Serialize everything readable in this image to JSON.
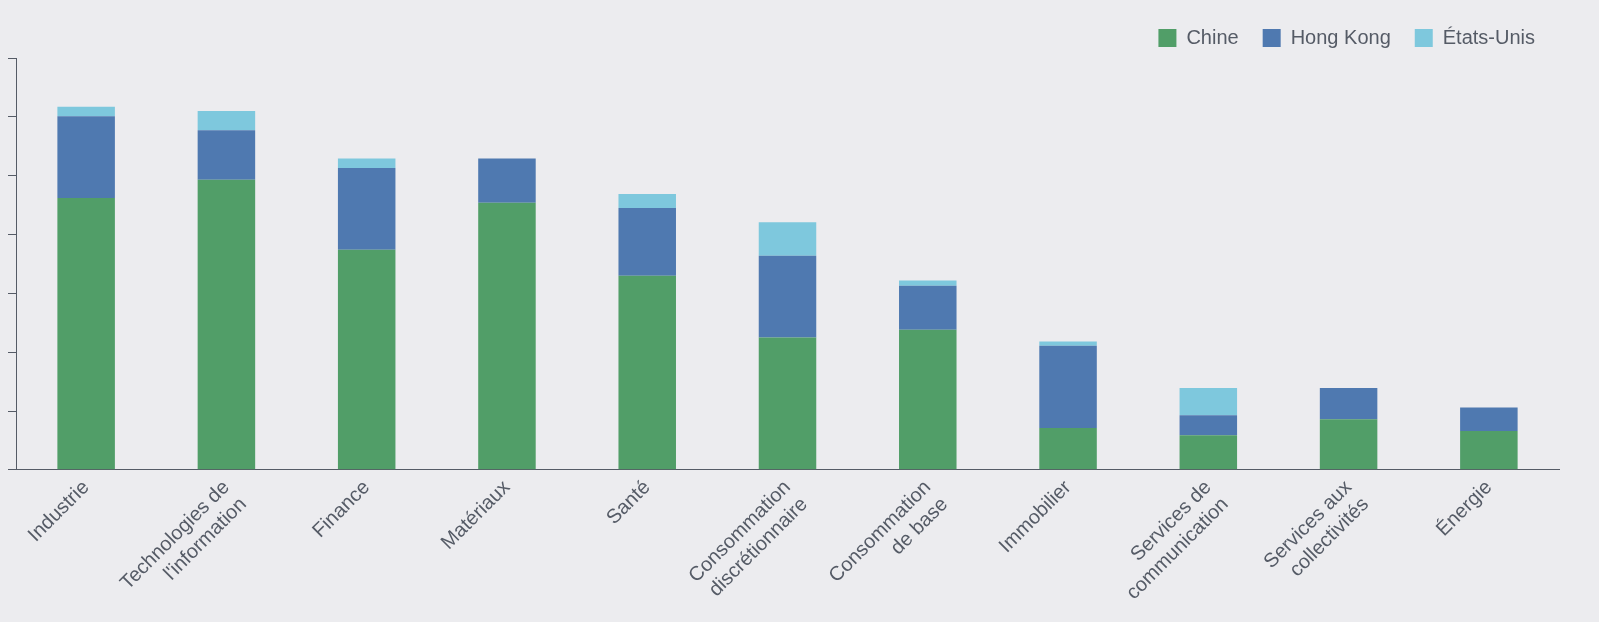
{
  "chart_data": {
    "type": "bar",
    "stacked": true,
    "categories": [
      "Industrie",
      "Technologies de\nl'information",
      "Finance",
      "Matériaux",
      "Santé",
      "Consommation\ndiscrétionnaire",
      "Consommation\nde base",
      "Immobilier",
      "Services de\ncommunication",
      "Services aux\ncollectivités",
      "Énergie"
    ],
    "series": [
      {
        "name": "Chine",
        "color": "#519e68",
        "values": [
          4.62,
          4.93,
          3.74,
          4.54,
          3.3,
          2.25,
          2.38,
          0.71,
          0.59,
          0.86,
          0.66
        ]
      },
      {
        "name": "Hong Kong",
        "color": "#4f79b0",
        "values": [
          1.39,
          0.84,
          1.39,
          0.75,
          1.15,
          1.39,
          0.75,
          1.4,
          0.34,
          0.53,
          0.4
        ]
      },
      {
        "name": "États-Unis",
        "color": "#7ec8dd",
        "values": [
          0.16,
          0.33,
          0.16,
          0,
          0.24,
          0.57,
          0.09,
          0.07,
          0.46,
          0,
          0
        ]
      }
    ],
    "ylim": [
      0,
      7
    ],
    "yticks": [
      0,
      1,
      2,
      3,
      4,
      5,
      6,
      7
    ],
    "grid": false,
    "legend": "top-right",
    "tick_labels": "x"
  }
}
